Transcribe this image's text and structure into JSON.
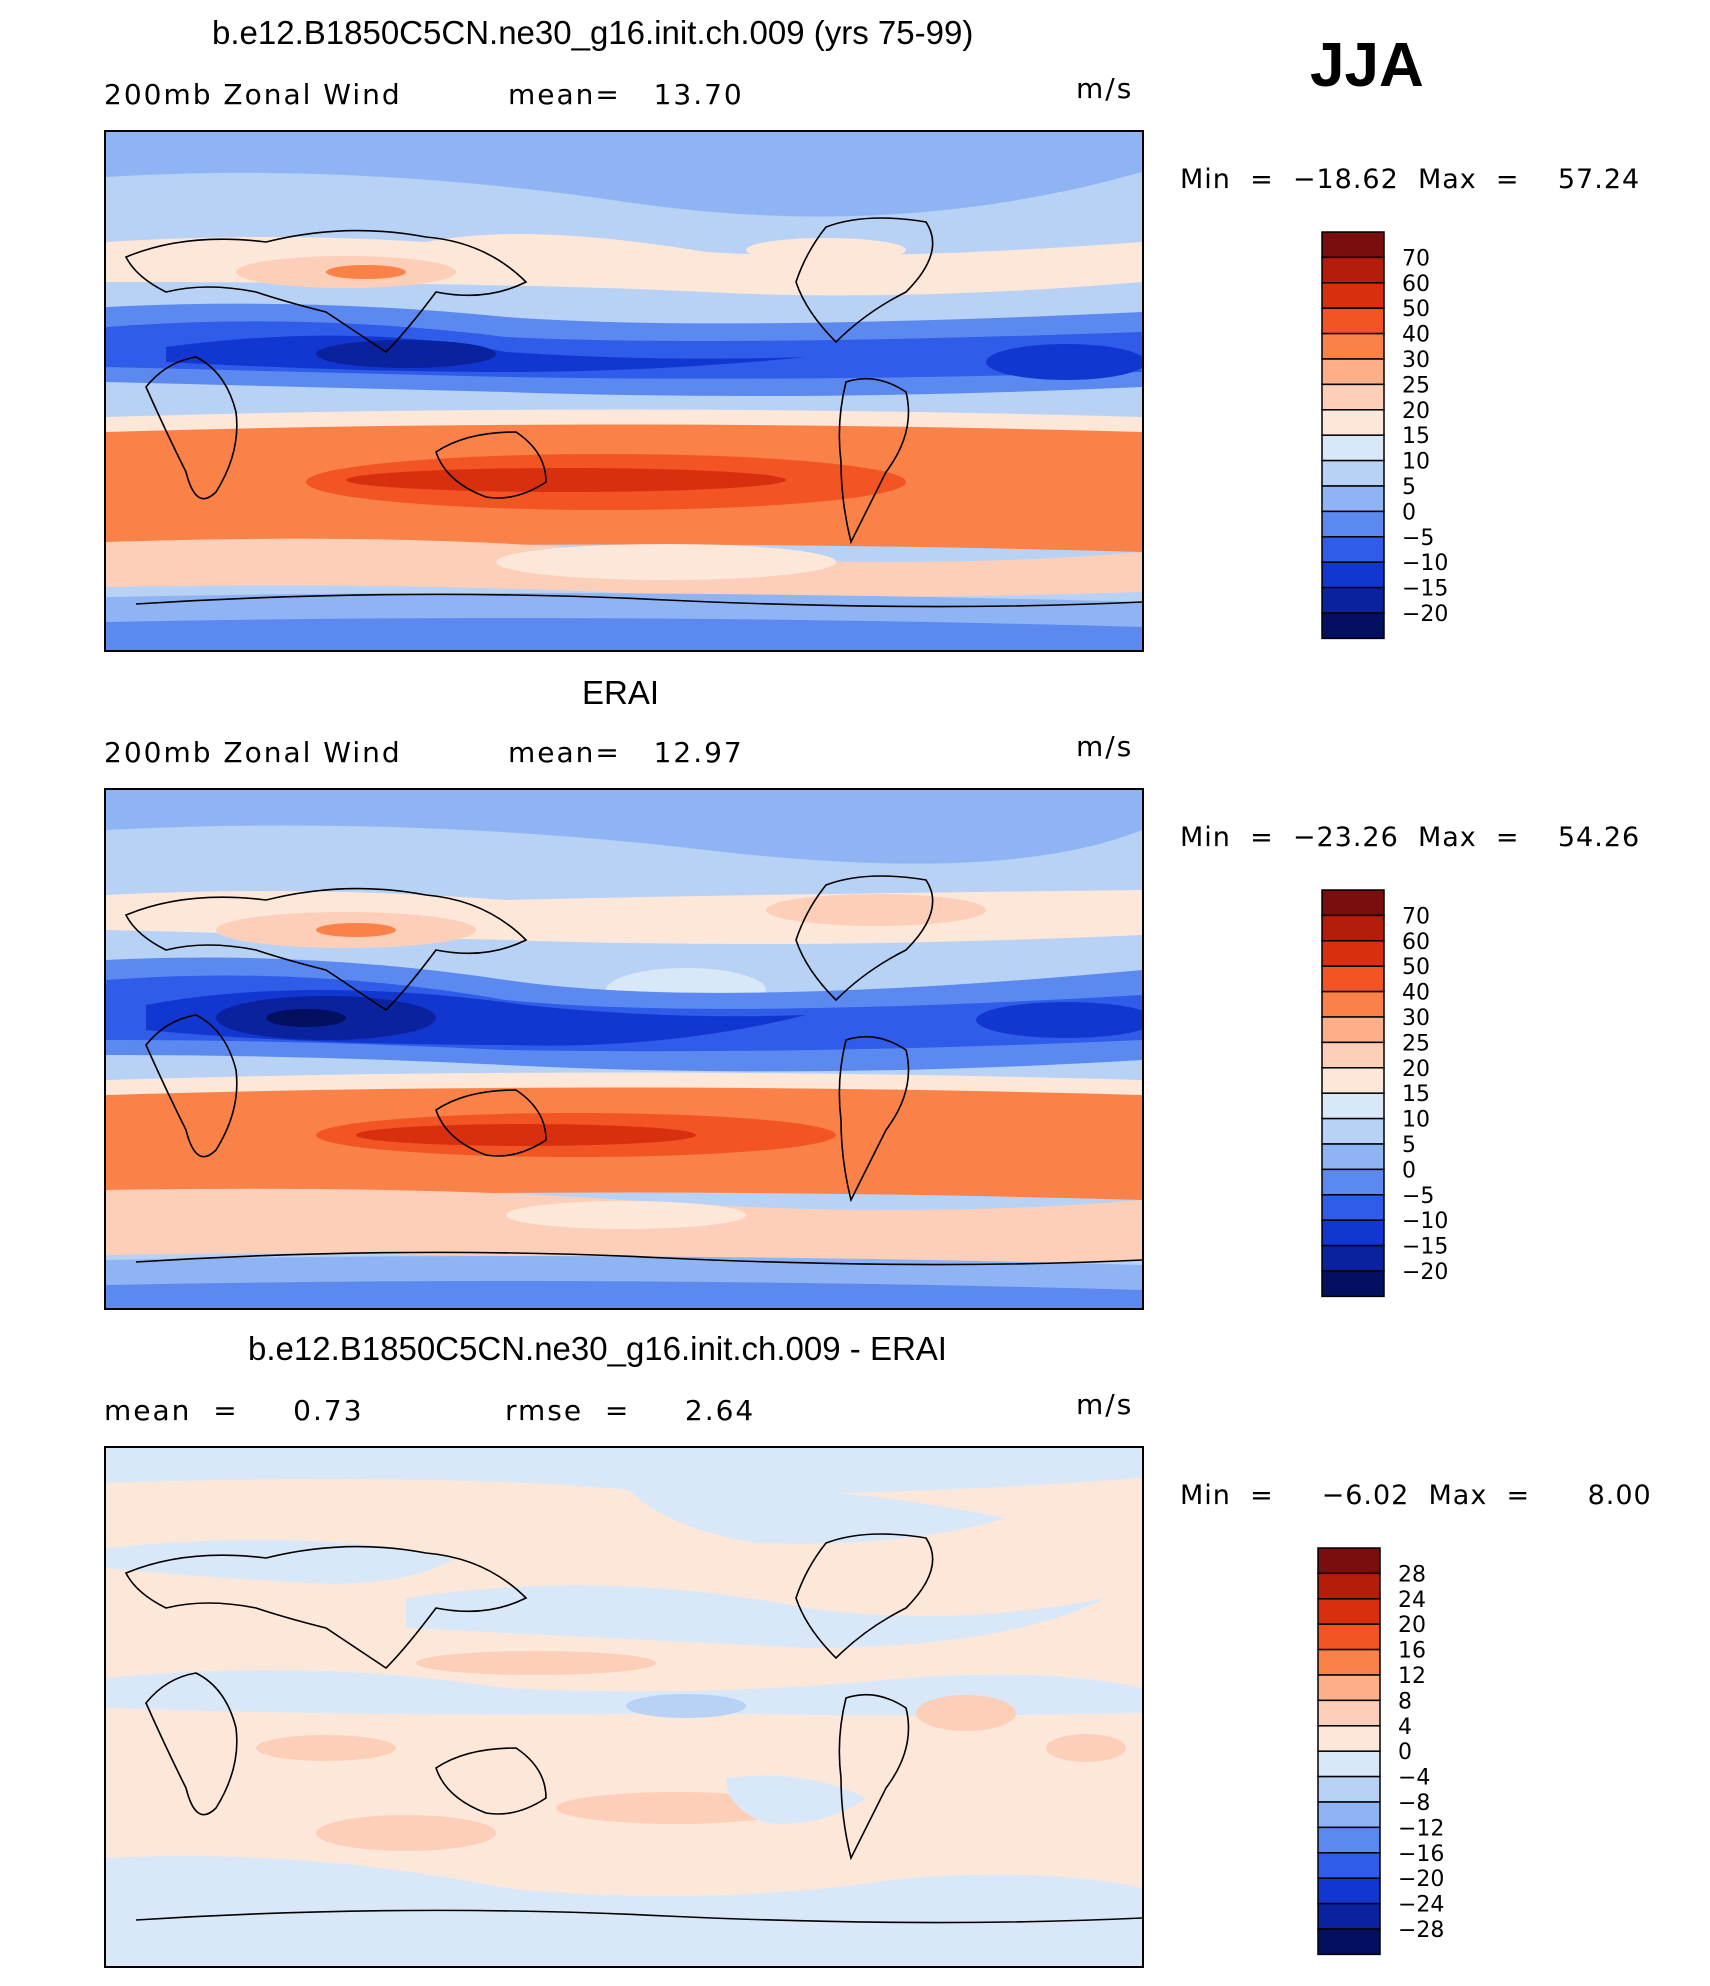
{
  "season": "JJA",
  "panels": [
    {
      "title": "b.e12.B1850C5CN.ne30_g16.init.ch.009 (yrs 75-99)",
      "left_label": "200mb Zonal Wind",
      "center_label": "mean=   13.70",
      "units": "m/s",
      "stats": "Min  =  −18.62  Max  =    57.24",
      "colorbar_labels": [
        "70",
        "60",
        "50",
        "40",
        "30",
        "25",
        "20",
        "15",
        "10",
        "5",
        "0",
        "−5",
        "−10",
        "−15",
        "−20"
      ]
    },
    {
      "title": "ERAI",
      "left_label": "200mb Zonal Wind",
      "center_label": "mean=   12.97",
      "units": "m/s",
      "stats": "Min  =  −23.26  Max  =    54.26",
      "colorbar_labels": [
        "70",
        "60",
        "50",
        "40",
        "30",
        "25",
        "20",
        "15",
        "10",
        "5",
        "0",
        "−5",
        "−10",
        "−15",
        "−20"
      ]
    },
    {
      "title": "b.e12.B1850C5CN.ne30_g16.init.ch.009 - ERAI",
      "left_label": "mean  =     0.73",
      "center_label": "rmse  =     2.64",
      "units": "m/s",
      "stats": "Min  =     −6.02  Max  =      8.00",
      "colorbar_labels": [
        "28",
        "24",
        "20",
        "16",
        "12",
        "8",
        "4",
        "0",
        "−4",
        "−8",
        "−12",
        "−16",
        "−20",
        "−24",
        "−28"
      ]
    }
  ],
  "colors": {
    "abs_scale": [
      "#7a0d0d",
      "#b51d0b",
      "#d8300f",
      "#f25424",
      "#fa8248",
      "#fdaf8a",
      "#fdcfb8",
      "#fde7d9",
      "#d9e8f8",
      "#b7d2f5",
      "#8fb4f3",
      "#5c89ef",
      "#2f5ce8",
      "#1236d0",
      "#0b229e",
      "#02105f"
    ],
    "diff_scale": [
      "#7a0d0d",
      "#b51d0b",
      "#d8300f",
      "#f25424",
      "#fa8248",
      "#fdaf8a",
      "#fdcfb8",
      "#fde7d9",
      "#d9e8f8",
      "#b7d2f5",
      "#8fb4f3",
      "#5c89ef",
      "#2f5ce8",
      "#1236d0",
      "#0b229e",
      "#02105f"
    ]
  }
}
